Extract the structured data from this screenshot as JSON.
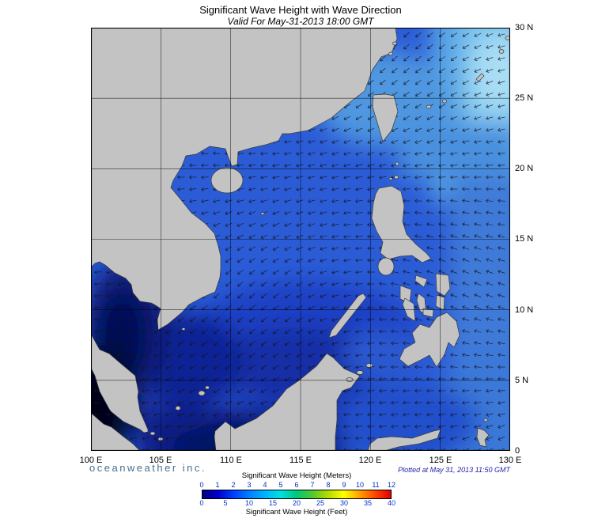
{
  "header": {
    "title": "Significant Wave Height with Wave Direction",
    "subtitle": "Valid For May-31-2013 18:00 GMT"
  },
  "map": {
    "lat_labels": [
      "30 N",
      "25 N",
      "20 N",
      "15 N",
      "10 N",
      "5 N",
      "0"
    ],
    "lon_labels": [
      "100 E",
      "105 E",
      "110 E",
      "115 E",
      "120 E",
      "125 E",
      "130 E"
    ],
    "colors": {
      "land": "#c3c3c3",
      "coastline": "#3a3a3a",
      "ocean_mid": "#2b5cd6",
      "ocean_light": "#7fc6ee",
      "ocean_dark": "#0a1b78",
      "ocean_darkest": "#010419"
    }
  },
  "footer": {
    "brand": "oceanweather inc.",
    "plotted": "Plotted at May 31, 2013 11:50 GMT"
  },
  "legend": {
    "meters_label": "Significant Wave Height (Meters)",
    "feet_label": "Significant Wave Height (Feet)",
    "meters_ticks": [
      "0",
      "1",
      "2",
      "3",
      "4",
      "5",
      "6",
      "7",
      "8",
      "9",
      "10",
      "11",
      "12"
    ],
    "feet_ticks": [
      "0",
      "5",
      "10",
      "15",
      "20",
      "25",
      "30",
      "35",
      "40"
    ],
    "scale_colors": [
      "#000080",
      "#0000cd",
      "#0040ff",
      "#0080ff",
      "#00b4ff",
      "#00e0e0",
      "#00c878",
      "#50c832",
      "#b4dc00",
      "#ffff00",
      "#ffa000",
      "#ff4600",
      "#e00000"
    ]
  }
}
